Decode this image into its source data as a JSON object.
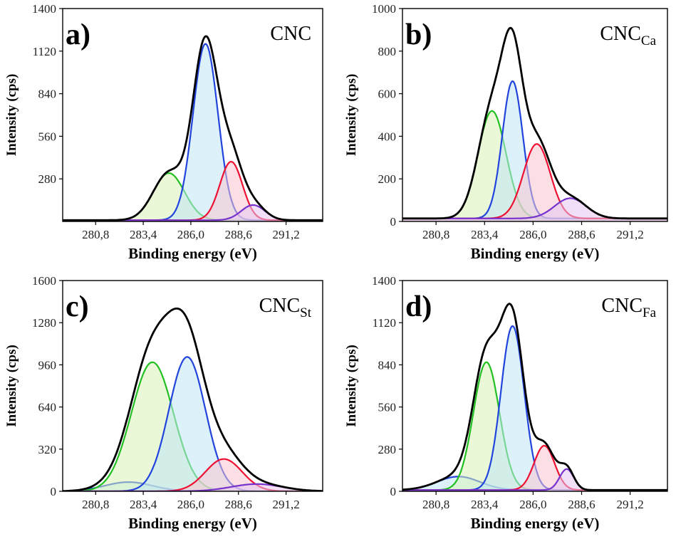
{
  "colors": {
    "envelope": "#000000",
    "c_c": "#22c022",
    "c_oh": "#2244dd",
    "o_c_o": "#ee1133",
    "o_c_eq_o": "#7733cc",
    "fill_green": "#d9f2b8",
    "fill_blue": "#bfe6f5",
    "fill_red": "#f7c4d0",
    "fill_purple": "#e3c4ee"
  },
  "chart_data": [
    {
      "type": "line",
      "panel_label": "a)",
      "sample": "CNC",
      "sample_sub": "",
      "xlabel": "Binding energy (eV)",
      "ylabel": "Intensity (cps)",
      "xlim": [
        279.0,
        293.2
      ],
      "ylim": [
        0,
        1400
      ],
      "xticks": [
        "280,8",
        "283,4",
        "286,0",
        "288,6",
        "291,2"
      ],
      "yticks": [
        "280",
        "560",
        "840",
        "1120",
        "1400"
      ],
      "background": 8,
      "series": [
        {
          "center": 284.8,
          "height": 310,
          "sigma": 0.85,
          "color": "c_c",
          "fill": "fill_green"
        },
        {
          "center": 286.8,
          "height": 1160,
          "sigma": 0.68,
          "color": "c_oh",
          "fill": "fill_blue"
        },
        {
          "center": 288.2,
          "height": 385,
          "sigma": 0.62,
          "color": "o_c_o",
          "fill": "fill_red"
        },
        {
          "center": 289.4,
          "height": 100,
          "sigma": 0.65,
          "color": "o_c_eq_o",
          "fill": "fill_purple"
        }
      ]
    },
    {
      "type": "line",
      "panel_label": "b)",
      "sample": "CNC",
      "sample_sub": "Ca",
      "xlabel": "Binding energy (eV)",
      "ylabel": "Intensity (cps)",
      "xlim": [
        279.0,
        293.2
      ],
      "ylim": [
        0,
        1000
      ],
      "xticks": [
        "280,8",
        "283,4",
        "286,0",
        "288,6",
        "291,2"
      ],
      "yticks": [
        "0",
        "200",
        "400",
        "600",
        "800",
        "1000"
      ],
      "background": 14,
      "series": [
        {
          "center": 283.8,
          "height": 505,
          "sigma": 0.75,
          "color": "c_c",
          "fill": "fill_green"
        },
        {
          "center": 284.9,
          "height": 645,
          "sigma": 0.55,
          "color": "c_oh",
          "fill": "fill_blue"
        },
        {
          "center": 286.2,
          "height": 350,
          "sigma": 0.72,
          "color": "o_c_o",
          "fill": "fill_red"
        },
        {
          "center": 288.0,
          "height": 95,
          "sigma": 0.85,
          "color": "o_c_eq_o",
          "fill": "fill_purple"
        }
      ]
    },
    {
      "type": "line",
      "panel_label": "c)",
      "sample": "CNC",
      "sample_sub": "St",
      "xlabel": "Binding energy (eV)",
      "ylabel": "Intensity (cps)",
      "xlim": [
        279.0,
        293.2
      ],
      "ylim": [
        0,
        1600
      ],
      "xticks": [
        "280,8",
        "283,4",
        "286,0",
        "288,6",
        "291,2"
      ],
      "yticks": [
        "0",
        "320",
        "640",
        "960",
        "1280",
        "1600"
      ],
      "background": 0,
      "series": [
        {
          "center": 282.6,
          "height": 70,
          "sigma": 1.3,
          "color": "c_oh",
          "fill": "fill_blue"
        },
        {
          "center": 283.9,
          "height": 980,
          "sigma": 1.15,
          "color": "c_c",
          "fill": "fill_green"
        },
        {
          "center": 285.8,
          "height": 1020,
          "sigma": 1.0,
          "color": "c_oh",
          "fill": "fill_blue"
        },
        {
          "center": 287.8,
          "height": 245,
          "sigma": 1.0,
          "color": "o_c_o",
          "fill": "fill_red"
        },
        {
          "center": 289.6,
          "height": 55,
          "sigma": 1.4,
          "color": "o_c_eq_o",
          "fill": "fill_purple"
        }
      ]
    },
    {
      "type": "line",
      "panel_label": "d)",
      "sample": "CNC",
      "sample_sub": "Fa",
      "xlabel": "Binding energy (eV)",
      "ylabel": "Intensity (cps)",
      "xlim": [
        279.0,
        293.2
      ],
      "ylim": [
        0,
        1400
      ],
      "xticks": [
        "280,8",
        "283,4",
        "286,0",
        "288,6",
        "291,2"
      ],
      "yticks": [
        "0",
        "280",
        "560",
        "840",
        "1120",
        "1400"
      ],
      "background": 8,
      "series": [
        {
          "center": 282.0,
          "height": 90,
          "sigma": 1.15,
          "color": "c_oh",
          "fill": "fill_blue"
        },
        {
          "center": 283.5,
          "height": 850,
          "sigma": 0.7,
          "color": "c_c",
          "fill": "fill_green"
        },
        {
          "center": 284.9,
          "height": 1090,
          "sigma": 0.62,
          "color": "c_oh",
          "fill": "fill_blue"
        },
        {
          "center": 286.6,
          "height": 295,
          "sigma": 0.55,
          "color": "o_c_o",
          "fill": "fill_red"
        },
        {
          "center": 287.8,
          "height": 140,
          "sigma": 0.38,
          "color": "o_c_eq_o",
          "fill": "fill_purple"
        }
      ]
    }
  ]
}
